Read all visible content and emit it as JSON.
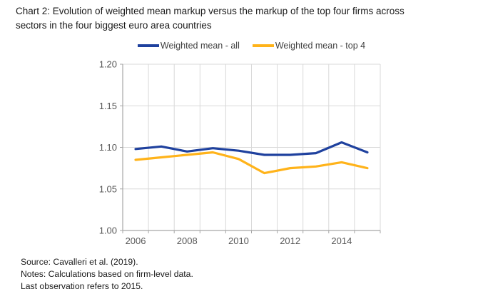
{
  "title": {
    "line1": "Chart 2: Evolution of weighted mean markup versus the markup of the top four firms across",
    "line2": "sectors in the four biggest euro area countries"
  },
  "legend": [
    {
      "label": "Weighted mean - all",
      "color": "#1F419E"
    },
    {
      "label": "Weighted mean - top 4",
      "color": "#FFB31A"
    }
  ],
  "chart_data": {
    "type": "line",
    "x": [
      2006,
      2007,
      2008,
      2009,
      2010,
      2011,
      2012,
      2013,
      2014,
      2015
    ],
    "series": [
      {
        "name": "Weighted mean - all",
        "color": "#1F419E",
        "values": [
          1.098,
          1.101,
          1.095,
          1.099,
          1.096,
          1.091,
          1.091,
          1.093,
          1.106,
          1.094
        ]
      },
      {
        "name": "Weighted mean - top 4",
        "color": "#FFB31A",
        "values": [
          1.085,
          1.088,
          1.091,
          1.094,
          1.086,
          1.069,
          1.075,
          1.077,
          1.082,
          1.075
        ]
      }
    ],
    "ylim": [
      1.0,
      1.2
    ],
    "yticks": [
      "1.00",
      "1.05",
      "1.10",
      "1.15",
      "1.20"
    ],
    "xtick_labels": [
      "2006",
      "2008",
      "2010",
      "2012",
      "2014"
    ],
    "grid": true,
    "legend_position": "top-center",
    "grid_color": "#D9D9D9",
    "axis_color": "#A6A6A6",
    "tick_label_color": "#595959"
  },
  "notes": [
    "Source: Cavalleri et al. (2019).",
    "Notes: Calculations based on firm-level data.",
    "Last observation refers to 2015."
  ]
}
